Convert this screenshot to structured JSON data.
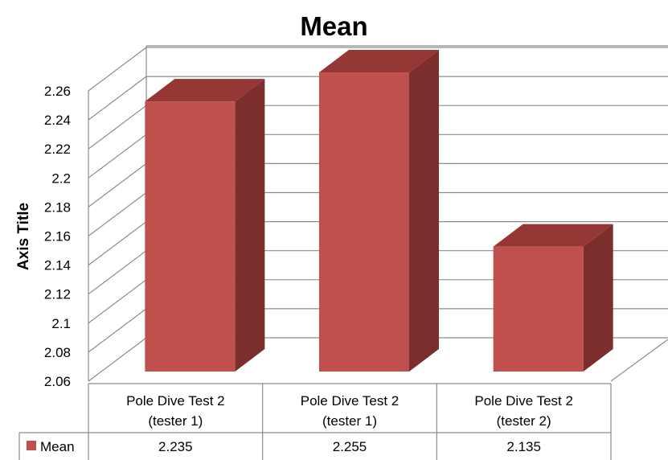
{
  "chart_data": {
    "type": "bar",
    "title": "Mean",
    "ylabel": "Axis Title",
    "xlabel": "",
    "ylim": [
      2.06,
      2.26
    ],
    "ytick_step": 0.02,
    "yticks": [
      "2.06",
      "2.08",
      "2.1",
      "2.12",
      "2.14",
      "2.16",
      "2.18",
      "2.2",
      "2.22",
      "2.24",
      "2.26"
    ],
    "categories": [
      [
        "Pole Dive Test 2",
        "(tester 1)"
      ],
      [
        "Pole Dive Test 2",
        "(tester 1)"
      ],
      [
        "Pole Dive Test 2",
        "(tester 2)"
      ]
    ],
    "series": [
      {
        "name": "Mean",
        "values": [
          2.235,
          2.255,
          2.135
        ],
        "value_labels": [
          "2.235",
          "2.255",
          "2.135"
        ],
        "color": "#C0504D"
      }
    ],
    "data_table": true,
    "grid": true,
    "three_d": true
  },
  "colors": {
    "bar_front": "#C0504D",
    "bar_side": "#7B2E2C",
    "bar_top": "#953735",
    "grid": "#8C8C8C",
    "frame": "#8C8C8C"
  }
}
